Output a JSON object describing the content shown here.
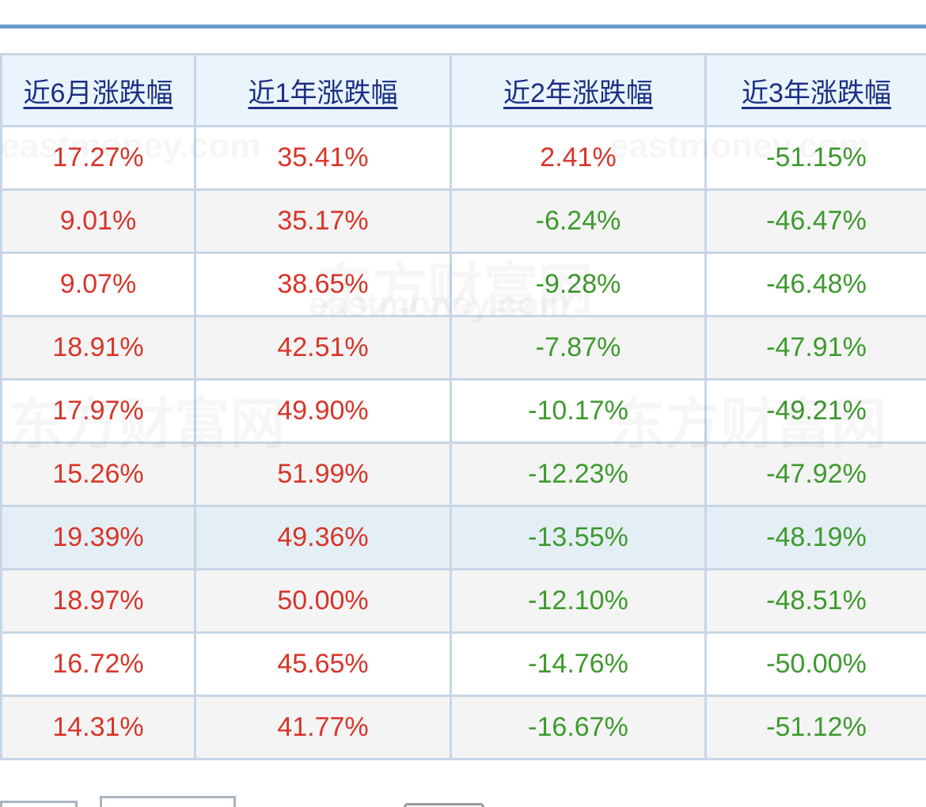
{
  "headers": [
    "近6月涨跌幅",
    "近1年涨跌幅",
    "近2年涨跌幅",
    "近3年涨跌幅"
  ],
  "rows": [
    [
      "17.27%",
      "35.41%",
      "2.41%",
      "-51.15%"
    ],
    [
      "9.01%",
      "35.17%",
      "-6.24%",
      "-46.47%"
    ],
    [
      "9.07%",
      "38.65%",
      "-9.28%",
      "-46.48%"
    ],
    [
      "18.91%",
      "42.51%",
      "-7.87%",
      "-47.91%"
    ],
    [
      "17.97%",
      "49.90%",
      "-10.17%",
      "-49.21%"
    ],
    [
      "15.26%",
      "51.99%",
      "-12.23%",
      "-47.92%"
    ],
    [
      "19.39%",
      "49.36%",
      "-13.55%",
      "-48.19%"
    ],
    [
      "18.97%",
      "50.00%",
      "-12.10%",
      "-48.51%"
    ],
    [
      "16.72%",
      "45.65%",
      "-14.76%",
      "-50.00%"
    ],
    [
      "14.31%",
      "41.77%",
      "-16.67%",
      "-51.12%"
    ]
  ],
  "highlighted_row": 6,
  "watermark": {
    "text_en": "eastmoney.com",
    "text_cn": "东方财富网"
  },
  "colors": {
    "positive": "#d8352a",
    "negative": "#3e9a2e",
    "header_link": "#1b2f84",
    "accent_line": "#6a98c8"
  }
}
